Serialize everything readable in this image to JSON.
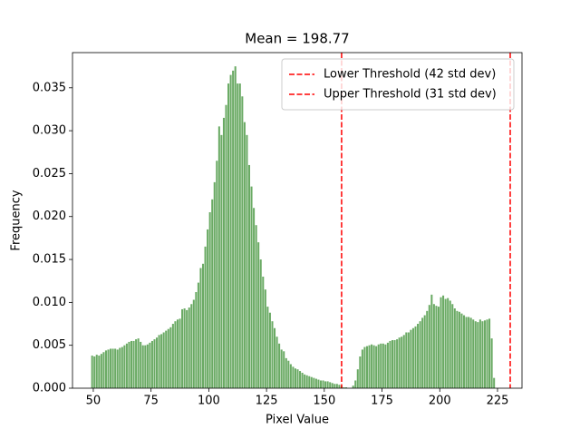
{
  "chart_data": {
    "type": "histogram",
    "title": "Mean = 198.77",
    "xlabel": "Pixel Value",
    "ylabel": "Frequency",
    "color": "#6aaa64",
    "bins": [
      49,
      50,
      51,
      52,
      53,
      54,
      55,
      56,
      57,
      58,
      59,
      60,
      61,
      62,
      63,
      64,
      65,
      66,
      67,
      68,
      69,
      70,
      71,
      72,
      73,
      74,
      75,
      76,
      77,
      78,
      79,
      80,
      81,
      82,
      83,
      84,
      85,
      86,
      87,
      88,
      89,
      90,
      91,
      92,
      93,
      94,
      95,
      96,
      97,
      98,
      99,
      100,
      101,
      102,
      103,
      104,
      105,
      106,
      107,
      108,
      109,
      110,
      111,
      112,
      113,
      114,
      115,
      116,
      117,
      118,
      119,
      120,
      121,
      122,
      123,
      124,
      125,
      126,
      127,
      128,
      129,
      130,
      131,
      132,
      133,
      134,
      135,
      136,
      137,
      138,
      139,
      140,
      141,
      142,
      143,
      144,
      145,
      146,
      147,
      148,
      149,
      150,
      151,
      152,
      153,
      154,
      155,
      156,
      157,
      158,
      159,
      160,
      161,
      162,
      163,
      164,
      165,
      166,
      167,
      168,
      169,
      170,
      171,
      172,
      173,
      174,
      175,
      176,
      177,
      178,
      179,
      180,
      181,
      182,
      183,
      184,
      185,
      186,
      187,
      188,
      189,
      190,
      191,
      192,
      193,
      194,
      195,
      196,
      197,
      198,
      199,
      200,
      201,
      202,
      203,
      204,
      205,
      206,
      207,
      208,
      209,
      210,
      211,
      212,
      213,
      214,
      215,
      216,
      217,
      218,
      219,
      220,
      221,
      222,
      223,
      224
    ],
    "values": [
      0.0038,
      0.0037,
      0.0039,
      0.0038,
      0.004,
      0.0042,
      0.0044,
      0.0045,
      0.0046,
      0.0046,
      0.0046,
      0.0045,
      0.0047,
      0.0048,
      0.005,
      0.0052,
      0.0054,
      0.0055,
      0.0055,
      0.0057,
      0.0058,
      0.0054,
      0.005,
      0.005,
      0.0051,
      0.0053,
      0.0055,
      0.0057,
      0.0059,
      0.0062,
      0.0063,
      0.0065,
      0.0067,
      0.0069,
      0.0071,
      0.0075,
      0.0078,
      0.008,
      0.0081,
      0.0092,
      0.0093,
      0.0091,
      0.0094,
      0.0098,
      0.0103,
      0.0112,
      0.0123,
      0.014,
      0.0145,
      0.0165,
      0.0185,
      0.0205,
      0.022,
      0.024,
      0.0265,
      0.0305,
      0.0295,
      0.0315,
      0.033,
      0.0355,
      0.0365,
      0.037,
      0.0375,
      0.0355,
      0.0355,
      0.034,
      0.031,
      0.0295,
      0.026,
      0.0235,
      0.021,
      0.019,
      0.017,
      0.015,
      0.013,
      0.0115,
      0.0095,
      0.0088,
      0.0078,
      0.007,
      0.006,
      0.0052,
      0.0045,
      0.0043,
      0.0035,
      0.0032,
      0.0028,
      0.0025,
      0.0023,
      0.0022,
      0.002,
      0.0018,
      0.0016,
      0.0015,
      0.0014,
      0.0013,
      0.0012,
      0.0011,
      0.001,
      0.0009,
      0.0009,
      0.0008,
      0.0008,
      0.0007,
      0.0006,
      0.0005,
      0.0005,
      0.0004,
      0.0003,
      0.0001,
      0.0001,
      0,
      0,
      0.0003,
      0.0009,
      0.0022,
      0.0037,
      0.0045,
      0.0048,
      0.0049,
      0.005,
      0.0051,
      0.005,
      0.0049,
      0.0051,
      0.0052,
      0.0052,
      0.0051,
      0.0053,
      0.0055,
      0.0056,
      0.0056,
      0.0057,
      0.0059,
      0.006,
      0.0062,
      0.0065,
      0.0065,
      0.0068,
      0.007,
      0.0072,
      0.0075,
      0.0078,
      0.0082,
      0.0085,
      0.009,
      0.0097,
      0.0109,
      0.0098,
      0.0096,
      0.0095,
      0.0106,
      0.0108,
      0.0104,
      0.0105,
      0.0102,
      0.0098,
      0.0093,
      0.009,
      0.0089,
      0.0087,
      0.0085,
      0.0083,
      0.0083,
      0.0082,
      0.008,
      0.0078,
      0.0077,
      0.008,
      0.0078,
      0.0079,
      0.008,
      0.0081,
      0.0058,
      0.0012
    ],
    "thresholds": [
      {
        "name": "Lower Threshold (42 std dev)",
        "value": 157.5,
        "color": "#ff0000"
      },
      {
        "name": "Upper Threshold (31 std dev)",
        "value": 230.5,
        "color": "#ff0000"
      }
    ],
    "xlim": [
      41,
      235.6
    ],
    "ylim": [
      0,
      0.0391
    ],
    "xticks": [
      50,
      75,
      100,
      125,
      150,
      175,
      200,
      225
    ],
    "yticks": [
      {
        "value": 0,
        "label": "0.000"
      },
      {
        "value": 0.005,
        "label": "0.005"
      },
      {
        "value": 0.01,
        "label": "0.010"
      },
      {
        "value": 0.015,
        "label": "0.015"
      },
      {
        "value": 0.02,
        "label": "0.020"
      },
      {
        "value": 0.025,
        "label": "0.025"
      },
      {
        "value": 0.03,
        "label": "0.030"
      },
      {
        "value": 0.035,
        "label": "0.035"
      }
    ],
    "legend": "upper right"
  }
}
